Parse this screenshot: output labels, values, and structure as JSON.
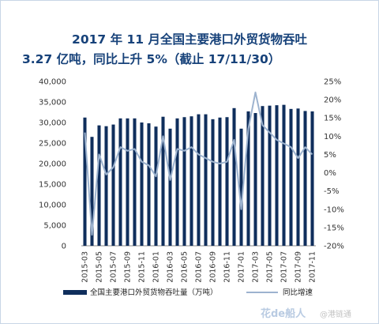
{
  "title_line1": "2017 年 11 月全国主要港口外贸货物吞吐",
  "title_line2": "3.27 亿吨，同比上升 5%（截止 17/11/30）",
  "chart_data": {
    "type": "bar+line",
    "categories": [
      "2015-03",
      "2015-04",
      "2015-05",
      "2015-06",
      "2015-07",
      "2015-08",
      "2015-09",
      "2015-10",
      "2015-11",
      "2015-12",
      "2016-01",
      "2016-02",
      "2016-03",
      "2016-04",
      "2016-05",
      "2016-06",
      "2016-07",
      "2016-08",
      "2016-09",
      "2016-10",
      "2016-11",
      "2016-12",
      "2017-01",
      "2017-02",
      "2017-03",
      "2017-04",
      "2017-05",
      "2017-06",
      "2017-07",
      "2017-08",
      "2017-09",
      "2017-10",
      "2017-11"
    ],
    "x_tick_labels": [
      "2015-03",
      "2015-05",
      "2015-07",
      "2015-09",
      "2015-11",
      "2016-01",
      "2016-03",
      "2016-05",
      "2016-07",
      "2016-09",
      "2016-11",
      "2017-01",
      "2017-03",
      "2017-05",
      "2017-07",
      "2017-09",
      "2017-11"
    ],
    "series": [
      {
        "name": "全国主要港口外贸货物吞吐量（万吨）",
        "type": "bar",
        "axis": "left",
        "color": "#0f2e5c",
        "values": [
          31200,
          26500,
          29300,
          29100,
          29500,
          31000,
          31000,
          31000,
          30000,
          29800,
          29000,
          31400,
          28500,
          31000,
          31300,
          31500,
          32000,
          32000,
          30800,
          31200,
          31300,
          33500,
          28500,
          32700,
          32300,
          34000,
          34100,
          34200,
          34300,
          33300,
          33400,
          32800,
          32700
        ]
      },
      {
        "name": "同比增速",
        "type": "line",
        "axis": "right",
        "color": "#9db3cf",
        "values": [
          11.0,
          -17.0,
          5.0,
          -0.5,
          1.5,
          7.0,
          6.0,
          6.5,
          3.0,
          2.0,
          -1.0,
          10.0,
          -2.0,
          6.5,
          6.0,
          7.0,
          5.0,
          4.0,
          3.0,
          2.5,
          3.0,
          9.0,
          -10.0,
          12.0,
          22.0,
          13.0,
          11.0,
          9.0,
          8.0,
          7.0,
          4.0,
          7.0,
          5.0
        ]
      }
    ],
    "y_left": {
      "min": 0,
      "max": 40000,
      "step": 5000,
      "ticks": [
        "0",
        "5,000",
        "10,000",
        "15,000",
        "20,000",
        "25,000",
        "30,000",
        "35,000",
        "40,000"
      ]
    },
    "y_right": {
      "min": -20,
      "max": 25,
      "step": 5,
      "ticks": [
        "-20%",
        "-15%",
        "-10%",
        "-5%",
        "0%",
        "5%",
        "10%",
        "15%",
        "20%",
        "25%"
      ]
    },
    "legend_position": "bottom",
    "grid": false
  },
  "legend": {
    "bar_label": "全国主要港口外贸货物吞吐量（万吨）",
    "line_label": "同比增速"
  },
  "watermark": {
    "brand": "花de船人",
    "source": "@港链通"
  }
}
